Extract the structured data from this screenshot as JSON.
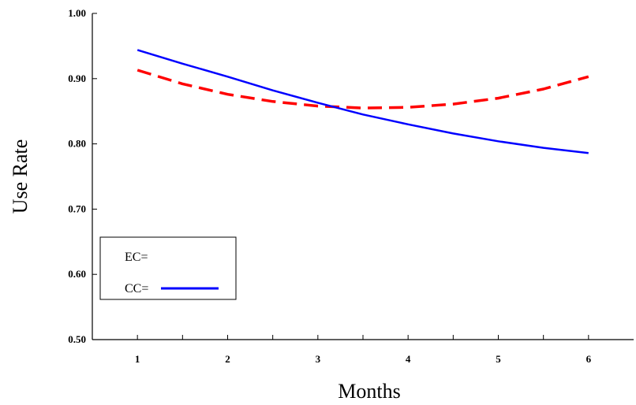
{
  "chart_data": {
    "type": "line",
    "xlabel": "Months",
    "ylabel": "Use Rate",
    "xlim": [
      0.5,
      6.5
    ],
    "ylim": [
      0.5,
      1.0
    ],
    "x_ticks": [
      1,
      2,
      3,
      4,
      5,
      6
    ],
    "x_tick_labels": [
      "1",
      "2",
      "3",
      "4",
      "5",
      "6"
    ],
    "y_ticks": [
      0.5,
      0.6,
      0.7,
      0.8,
      0.9,
      1.0
    ],
    "y_tick_labels": [
      "0.50",
      "0.60",
      "0.70",
      "0.80",
      "0.90",
      "1.00"
    ],
    "grid": false,
    "legend_position": "bottom-left",
    "x": [
      1,
      1.5,
      2,
      2.5,
      3,
      3.5,
      4,
      4.5,
      5,
      5.5,
      6
    ],
    "series": [
      {
        "name": "EC=",
        "color": "#ff0000",
        "dash": "dashed",
        "values": [
          0.913,
          0.892,
          0.876,
          0.865,
          0.858,
          0.855,
          0.856,
          0.861,
          0.87,
          0.884,
          0.903
        ]
      },
      {
        "name": "CC=",
        "color": "#0000ff",
        "dash": "solid",
        "values": [
          0.944,
          0.923,
          0.903,
          0.882,
          0.863,
          0.845,
          0.83,
          0.816,
          0.804,
          0.794,
          0.786
        ]
      }
    ]
  }
}
